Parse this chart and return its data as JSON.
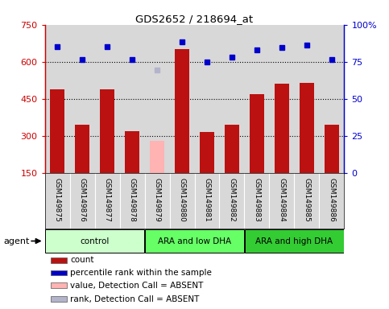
{
  "title": "GDS2652 / 218694_at",
  "samples": [
    "GSM149875",
    "GSM149876",
    "GSM149877",
    "GSM149878",
    "GSM149879",
    "GSM149880",
    "GSM149881",
    "GSM149882",
    "GSM149883",
    "GSM149884",
    "GSM149885",
    "GSM149886"
  ],
  "bar_values": [
    490,
    345,
    490,
    320,
    null,
    650,
    315,
    345,
    470,
    510,
    515,
    345
  ],
  "absent_bar_value": 280,
  "absent_bar_color": "#ffb3b3",
  "dot_values": [
    660,
    610,
    660,
    608,
    null,
    680,
    598,
    618,
    648,
    658,
    668,
    610
  ],
  "absent_dot_value": 568,
  "absent_dot_color": "#b3b3cc",
  "dot_color": "#0000cc",
  "bar_color": "#bb1111",
  "ylim_left": [
    150,
    750
  ],
  "ylim_right": [
    0,
    100
  ],
  "yticks_left": [
    150,
    300,
    450,
    600,
    750
  ],
  "yticks_right": [
    0,
    25,
    50,
    75,
    100
  ],
  "groups": [
    {
      "label": "control",
      "start": 0,
      "end": 3,
      "color": "#ccffcc"
    },
    {
      "label": "ARA and low DHA",
      "start": 4,
      "end": 7,
      "color": "#66ff66"
    },
    {
      "label": "ARA and high DHA",
      "start": 8,
      "end": 11,
      "color": "#33cc33"
    }
  ],
  "agent_label": "agent",
  "plot_bg_color": "#d8d8d8",
  "label_bg_color": "#d8d8d8"
}
